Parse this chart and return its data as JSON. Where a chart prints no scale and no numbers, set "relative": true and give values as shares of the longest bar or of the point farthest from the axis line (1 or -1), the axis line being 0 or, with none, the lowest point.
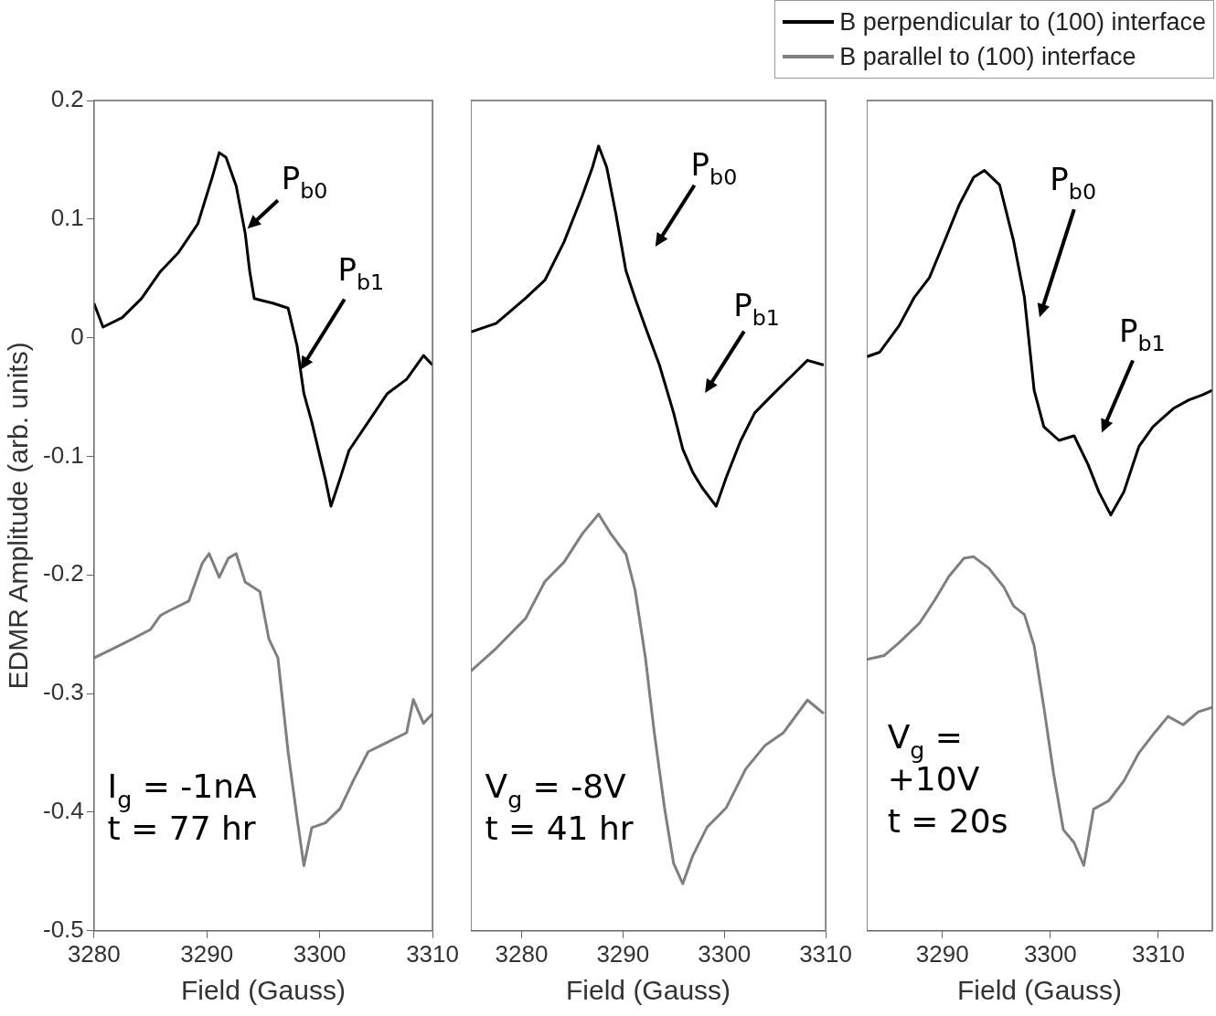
{
  "chart_data": [
    {
      "type": "line",
      "xlabel": "Field (Gauss)",
      "ylabel": "EDMR Amplitude (arb. units)",
      "xlim": [
        3280,
        3310
      ],
      "xticks": [
        3280,
        3290,
        3300,
        3310
      ],
      "ylim": [
        -0.5,
        0.2
      ],
      "yticks": [
        -0.5,
        -0.4,
        -0.3,
        -0.2,
        -0.1,
        0,
        0.1,
        0.2
      ],
      "legend": "top right",
      "marker": "none",
      "line_style": "solid",
      "annotations": [
        {
          "text": "P$_{b0}$",
          "x": 3293.6,
          "y": 0.092
        },
        {
          "text": "P$_{b1}$",
          "x": 3298.3,
          "y": -0.027
        },
        "I$_{g}$ = -1nA\nt = 77 hr"
      ],
      "series": [
        {
          "name": "B perpendicular to (100) interface",
          "color": "#000000",
          "x": [
            3280,
            3280.8,
            3282.5,
            3284.2,
            3285.9,
            3287.5,
            3289.2,
            3290.5,
            3291.1,
            3291.7,
            3292.6,
            3293.4,
            3293.8,
            3294.2,
            3295.9,
            3297.2,
            3298,
            3298.6,
            3299.3,
            3299.9,
            3300.5,
            3301,
            3301.8,
            3302.6,
            3304.3,
            3306,
            3307.7,
            3309.2,
            3310
          ],
          "values": [
            0.029,
            0.009,
            0.017,
            0.033,
            0.056,
            0.072,
            0.096,
            0.136,
            0.156,
            0.152,
            0.128,
            0.088,
            0.056,
            0.033,
            0.029,
            0.025,
            -0.007,
            -0.047,
            -0.071,
            -0.095,
            -0.119,
            -0.142,
            -0.119,
            -0.095,
            -0.071,
            -0.047,
            -0.035,
            -0.015,
            -0.023
          ]
        },
        {
          "name": "B parallel to (100) interface",
          "color": "#7f7f7f",
          "x": [
            3280,
            3281.7,
            3283.4,
            3285,
            3285.9,
            3286.7,
            3288.4,
            3289.6,
            3290.2,
            3291.1,
            3291.9,
            3292.6,
            3293.4,
            3294.7,
            3295.5,
            3296.3,
            3297.2,
            3298,
            3298.6,
            3299.3,
            3300.5,
            3301.8,
            3303,
            3304.3,
            3306,
            3307.7,
            3308.3,
            3309.2,
            3310
          ],
          "values": [
            -0.27,
            -0.262,
            -0.254,
            -0.246,
            -0.234,
            -0.23,
            -0.222,
            -0.19,
            -0.182,
            -0.202,
            -0.186,
            -0.182,
            -0.206,
            -0.214,
            -0.254,
            -0.27,
            -0.349,
            -0.405,
            -0.445,
            -0.413,
            -0.409,
            -0.397,
            -0.373,
            -0.349,
            -0.341,
            -0.333,
            -0.305,
            -0.325,
            -0.317
          ]
        }
      ]
    },
    {
      "type": "line",
      "xlabel": "Field (Gauss)",
      "xlim": [
        3275,
        3310
      ],
      "xticks": [
        3280,
        3290,
        3300,
        3310
      ],
      "relative": true,
      "marker": "none",
      "line_style": "solid",
      "annotations": [
        "P$_{b0}$",
        "P$_{b1}$",
        "V$_{g}$ = -8V\nt = 41 hr"
      ],
      "series": [
        {
          "color": "#000000",
          "x": [
            3275,
            3277.5,
            3280.4,
            3282.3,
            3284.2,
            3286,
            3287,
            3287.6,
            3288.4,
            3289.3,
            3290.3,
            3291.2,
            3292.2,
            3293.6,
            3295,
            3295.9,
            3296.9,
            3297.8,
            3299.2,
            3300.2,
            3301.6,
            3303,
            3304.9,
            3306.8,
            3308.2,
            3309.8
          ],
          "values": [
            0.763,
            0.774,
            0.806,
            0.829,
            0.878,
            0.937,
            0.973,
            1,
            0.973,
            0.914,
            0.841,
            0.806,
            0.77,
            0.721,
            0.66,
            0.614,
            0.584,
            0.565,
            0.541,
            0.578,
            0.624,
            0.66,
            0.685,
            0.709,
            0.727,
            0.721
          ]
        },
        {
          "color": "#7f7f7f",
          "x": [
            3275,
            3277.5,
            3280.4,
            3282.3,
            3284.2,
            3286,
            3287.6,
            3288.8,
            3290.3,
            3291.2,
            3292.2,
            3293.1,
            3294.1,
            3295,
            3295.9,
            3296.9,
            3298.3,
            3300.2,
            3302.1,
            3304,
            3305.8,
            3308.2,
            3309.8
          ],
          "values": [
            0.331,
            0.36,
            0.398,
            0.445,
            0.47,
            0.506,
            0.531,
            0.506,
            0.48,
            0.434,
            0.35,
            0.252,
            0.157,
            0.086,
            0.06,
            0.096,
            0.132,
            0.157,
            0.206,
            0.236,
            0.252,
            0.294,
            0.277
          ]
        }
      ]
    },
    {
      "type": "line",
      "xlabel": "Field (Gauss)",
      "xlim": [
        3283,
        3315
      ],
      "xticks": [
        3290,
        3300,
        3310
      ],
      "relative": true,
      "marker": "none",
      "line_style": "solid",
      "annotations": [
        "P$_{b0}$",
        "P$_{b1}$",
        "V$_{g}$ =\n+10V\nt = 20s"
      ],
      "series": [
        {
          "color": "#000000",
          "x": [
            3283,
            3284.2,
            3286,
            3287.4,
            3288.8,
            3290.2,
            3291.6,
            3292.9,
            3293.9,
            3295.3,
            3296.6,
            3297.6,
            3298.5,
            3299.4,
            3300.8,
            3302.2,
            3303.5,
            3304.5,
            3305.6,
            3306.8,
            3308.2,
            3309.5,
            3311.4,
            3312.8,
            3314.1,
            3315
          ],
          "values": [
            0.755,
            0.761,
            0.796,
            0.833,
            0.859,
            0.907,
            0.956,
            0.991,
            1,
            0.981,
            0.907,
            0.833,
            0.711,
            0.663,
            0.645,
            0.651,
            0.613,
            0.577,
            0.547,
            0.577,
            0.637,
            0.663,
            0.687,
            0.698,
            0.705,
            0.711
          ]
        },
        {
          "color": "#7f7f7f",
          "x": [
            3283,
            3284.6,
            3286,
            3287.9,
            3289.3,
            3290.6,
            3292,
            3292.9,
            3294.3,
            3295.7,
            3296.6,
            3297.6,
            3298.5,
            3299.4,
            3300.3,
            3301.2,
            3302.2,
            3303.1,
            3304,
            3305.4,
            3306.8,
            3308.2,
            3309.5,
            3310.9,
            3312.3,
            3313.7,
            3315
          ],
          "values": [
            0.357,
            0.362,
            0.379,
            0.405,
            0.435,
            0.466,
            0.49,
            0.492,
            0.477,
            0.452,
            0.427,
            0.416,
            0.375,
            0.294,
            0.207,
            0.133,
            0.116,
            0.086,
            0.16,
            0.171,
            0.197,
            0.234,
            0.258,
            0.282,
            0.271,
            0.288,
            0.294
          ]
        }
      ]
    }
  ]
}
